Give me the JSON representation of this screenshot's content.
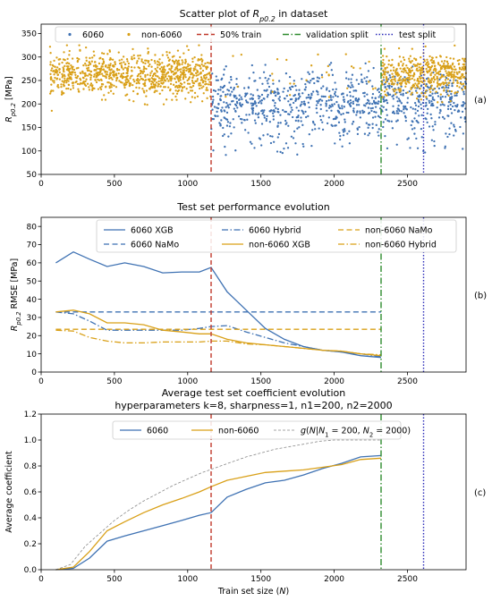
{
  "colors": {
    "s6060": "#3f72b3",
    "non6060": "#d9a018",
    "line50": "#c0392b",
    "val": "#2e8b2e",
    "test": "#2b2bb8",
    "gfun": "#888888"
  },
  "shared": {
    "vlines": {
      "train50": 1160,
      "validation": 2320,
      "test": 2610
    },
    "xlim": [
      0,
      2900
    ],
    "xticks": [
      0,
      500,
      1000,
      1500,
      2000,
      2500
    ],
    "xlabel": "Train set size (N)"
  },
  "chart_data": [
    {
      "type": "scatter",
      "id": "a",
      "panel_label": "(a)",
      "title": "Scatter plot of Rp0.2 in dataset",
      "ylabel": "Rp0.2 [MPa]",
      "ylim": [
        50,
        370
      ],
      "yticks": [
        50,
        100,
        150,
        200,
        250,
        300,
        350
      ],
      "legend": [
        "6060",
        "non-6060",
        "50% train",
        "validation split",
        "test split"
      ],
      "series": [
        {
          "name": "6060",
          "x_range": [
            1160,
            2900
          ],
          "y_center": 205,
          "y_spread": 30,
          "y_min": 70,
          "y_max": 300
        },
        {
          "name": "non-6060",
          "x_ranges": [
            [
              60,
              1160
            ],
            [
              2320,
              2900
            ]
          ],
          "y_center": 262,
          "y_spread": 22,
          "y_min": 180,
          "y_max": 325
        }
      ]
    },
    {
      "type": "line",
      "id": "b",
      "panel_label": "(b)",
      "title": "Test set performance evolution",
      "ylabel": "Rp0.2 RMSE [MPa]",
      "ylim": [
        0,
        85
      ],
      "yticks": [
        0,
        10,
        20,
        30,
        40,
        50,
        60,
        70,
        80
      ],
      "legend_order": [
        "6060 XGB",
        "6060 NaMo",
        "6060 Hybrid",
        "non-6060 XGB",
        "non-6060 NaMo",
        "non-6060 Hybrid"
      ],
      "series": [
        {
          "name": "6060 XGB",
          "style": "solid",
          "color": "s6060",
          "x": [
            100,
            220,
            330,
            450,
            570,
            700,
            830,
            960,
            1080,
            1160,
            1270,
            1400,
            1530,
            1660,
            1790,
            1920,
            2050,
            2180,
            2320
          ],
          "y": [
            60,
            66,
            62,
            58,
            60,
            58,
            54.5,
            55,
            55,
            57.5,
            44,
            34,
            24,
            18,
            14,
            12,
            11,
            9,
            8
          ]
        },
        {
          "name": "6060 NaMo",
          "style": "dashed",
          "color": "s6060",
          "x": [
            100,
            2320
          ],
          "y": [
            33,
            33
          ]
        },
        {
          "name": "6060 Hybrid",
          "style": "dashdot",
          "color": "s6060",
          "x": [
            100,
            220,
            330,
            450,
            570,
            700,
            830,
            960,
            1080,
            1160,
            1270,
            1400,
            1530,
            1660,
            1790,
            1920,
            2050,
            2180,
            2320
          ],
          "y": [
            33,
            32,
            28,
            23,
            23,
            23,
            23,
            23,
            24,
            25,
            25.5,
            22,
            19,
            16,
            14,
            12,
            11,
            10,
            8.5
          ]
        },
        {
          "name": "non-6060 XGB",
          "style": "solid",
          "color": "non6060",
          "x": [
            100,
            220,
            330,
            450,
            570,
            700,
            830,
            960,
            1080,
            1160,
            1270,
            1400,
            1530,
            1660,
            1790,
            1920,
            2050,
            2180,
            2320
          ],
          "y": [
            33,
            34,
            32,
            27,
            27,
            26,
            23,
            22,
            21,
            21,
            18,
            16,
            15,
            14,
            13,
            12,
            11.5,
            10,
            9
          ]
        },
        {
          "name": "non-6060 NaMo",
          "style": "dashed",
          "color": "non6060",
          "x": [
            100,
            2320
          ],
          "y": [
            23.5,
            23.5
          ]
        },
        {
          "name": "non-6060 Hybrid",
          "style": "dashdot",
          "color": "non6060",
          "x": [
            100,
            220,
            330,
            450,
            570,
            700,
            830,
            960,
            1080,
            1160,
            1270,
            1400,
            1530,
            1660,
            1790,
            1920,
            2050,
            2180,
            2320
          ],
          "y": [
            23,
            22.5,
            19,
            17,
            16,
            16,
            16.5,
            16.5,
            16.5,
            17,
            17,
            15.5,
            15,
            14,
            13,
            12,
            11.5,
            10,
            9.5
          ]
        }
      ]
    },
    {
      "type": "line",
      "id": "c",
      "panel_label": "(c)",
      "title": "Average test set coefficient evolution",
      "subtitle": "hyperparameters k=8, sharpness=1, n1=200, n2=2000",
      "ylabel": "Average coefficient",
      "ylim": [
        0,
        1.2
      ],
      "yticks": [
        0.0,
        0.2,
        0.4,
        0.6,
        0.8,
        1.0,
        1.2
      ],
      "legend_order": [
        "6060",
        "non-6060",
        "g(N|N1 = 200, N2 = 2000)"
      ],
      "series": [
        {
          "name": "6060",
          "style": "solid",
          "color": "s6060",
          "x": [
            100,
            220,
            330,
            450,
            570,
            700,
            830,
            960,
            1080,
            1160,
            1270,
            1400,
            1530,
            1660,
            1790,
            1920,
            2050,
            2180,
            2320
          ],
          "y": [
            0.0,
            0.01,
            0.09,
            0.22,
            0.26,
            0.3,
            0.34,
            0.38,
            0.42,
            0.44,
            0.56,
            0.62,
            0.67,
            0.69,
            0.73,
            0.78,
            0.82,
            0.87,
            0.88
          ]
        },
        {
          "name": "non-6060",
          "style": "solid",
          "color": "non6060",
          "x": [
            100,
            220,
            330,
            450,
            570,
            700,
            830,
            960,
            1080,
            1160,
            1270,
            1400,
            1530,
            1660,
            1790,
            1920,
            2050,
            2180,
            2320
          ],
          "y": [
            0.0,
            0.02,
            0.14,
            0.3,
            0.37,
            0.44,
            0.5,
            0.55,
            0.6,
            0.64,
            0.69,
            0.72,
            0.75,
            0.76,
            0.77,
            0.79,
            0.81,
            0.85,
            0.86
          ]
        },
        {
          "name": "g(N|N1 = 200, N2 = 2000)",
          "style": "dashed-thin",
          "color": "gfun",
          "x": [
            100,
            200,
            300,
            400,
            500,
            600,
            700,
            800,
            900,
            1000,
            1100,
            1200,
            1300,
            1400,
            1500,
            1600,
            1700,
            1800,
            1900,
            2000,
            2320
          ],
          "y": [
            0.0,
            0.04,
            0.18,
            0.28,
            0.38,
            0.46,
            0.53,
            0.59,
            0.65,
            0.7,
            0.75,
            0.79,
            0.83,
            0.87,
            0.9,
            0.93,
            0.95,
            0.97,
            0.99,
            1.0,
            1.0
          ]
        }
      ]
    }
  ]
}
